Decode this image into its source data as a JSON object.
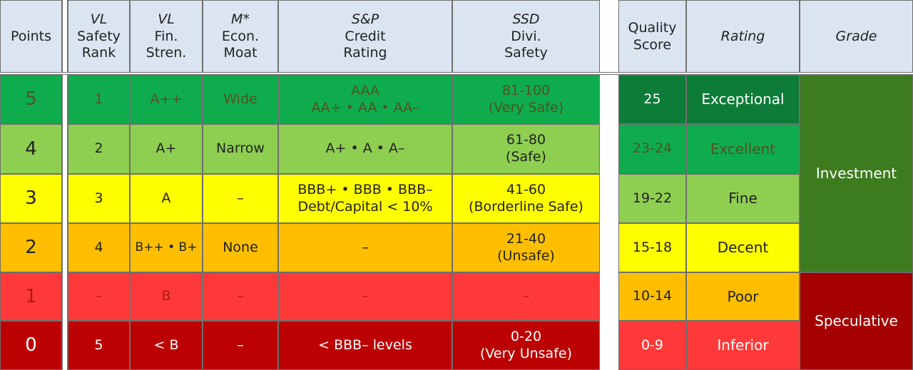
{
  "left_table": {
    "headers": [
      {
        "line1": "",
        "line2": "Points",
        "line3": ""
      },
      {
        "line1": "VL",
        "line2": "Safety",
        "line3": "Rank"
      },
      {
        "line1": "VL",
        "line2": "Fin.",
        "line3": "Stren."
      },
      {
        "line1": "M*",
        "line2": "Econ.",
        "line3": "Moat"
      },
      {
        "line1": "S&P",
        "line2": "Credit",
        "line3": "Rating"
      },
      {
        "line1": "SSD",
        "line2": "Divi.",
        "line3": "Safety"
      }
    ],
    "rows": [
      {
        "points": "5",
        "safety_rank": "1",
        "fin_strength": "A++",
        "moat": "Wide",
        "credit_line1": "AAA",
        "credit_line2": "AA+ • AA • AA–",
        "divi_line1": "81-100",
        "divi_line2": "(Very Safe)"
      },
      {
        "points": "4",
        "safety_rank": "2",
        "fin_strength": "A+",
        "moat": "Narrow",
        "credit_line1": "A+ • A • A–",
        "credit_line2": "",
        "divi_line1": "61-80",
        "divi_line2": "(Safe)"
      },
      {
        "points": "3",
        "safety_rank": "3",
        "fin_strength": "A",
        "moat": "–",
        "credit_line1": "BBB+ • BBB • BBB–",
        "credit_line2": "Debt/Capital < 10%",
        "divi_line1": "41-60",
        "divi_line2": "(Borderline Safe)"
      },
      {
        "points": "2",
        "safety_rank": "4",
        "fin_strength": "B++ • B+",
        "moat": "None",
        "credit_line1": "–",
        "credit_line2": "",
        "divi_line1": "21-40",
        "divi_line2": "(Unsafe)"
      },
      {
        "points": "1",
        "safety_rank": "–",
        "fin_strength": "B",
        "moat": "–",
        "credit_line1": "–",
        "credit_line2": "",
        "divi_line1": "–",
        "divi_line2": ""
      },
      {
        "points": "0",
        "safety_rank": "5",
        "fin_strength": "< B",
        "moat": "–",
        "credit_line1": "< BBB– levels",
        "credit_line2": "",
        "divi_line1": "0-20",
        "divi_line2": "(Very Unsafe)"
      }
    ]
  },
  "right_table": {
    "headers": {
      "score_line1": "Quality",
      "score_line2": "Score",
      "rating": "Rating",
      "grade": "Grade"
    },
    "rows": [
      {
        "score": "25",
        "rating": "Exceptional"
      },
      {
        "score": "23-24",
        "rating": "Excellent"
      },
      {
        "score": "19-22",
        "rating": "Fine"
      },
      {
        "score": "15-18",
        "rating": "Decent"
      },
      {
        "score": "10-14",
        "rating": "Poor"
      },
      {
        "score": "0-9",
        "rating": "Inferior"
      }
    ],
    "grades": {
      "investment": "Investment",
      "speculative": "Speculative"
    }
  },
  "colors": {
    "points_5": "#0fac4e",
    "points_4": "#8ecf51",
    "points_3": "#fffe00",
    "points_2": "#ffbf00",
    "points_1": "#ff3939",
    "points_0": "#bb0101",
    "score_25": "#0d7c38",
    "grade_investment": "#3d7b1f",
    "grade_speculative": "#a50000",
    "header_bg": "#dbe5f1"
  }
}
